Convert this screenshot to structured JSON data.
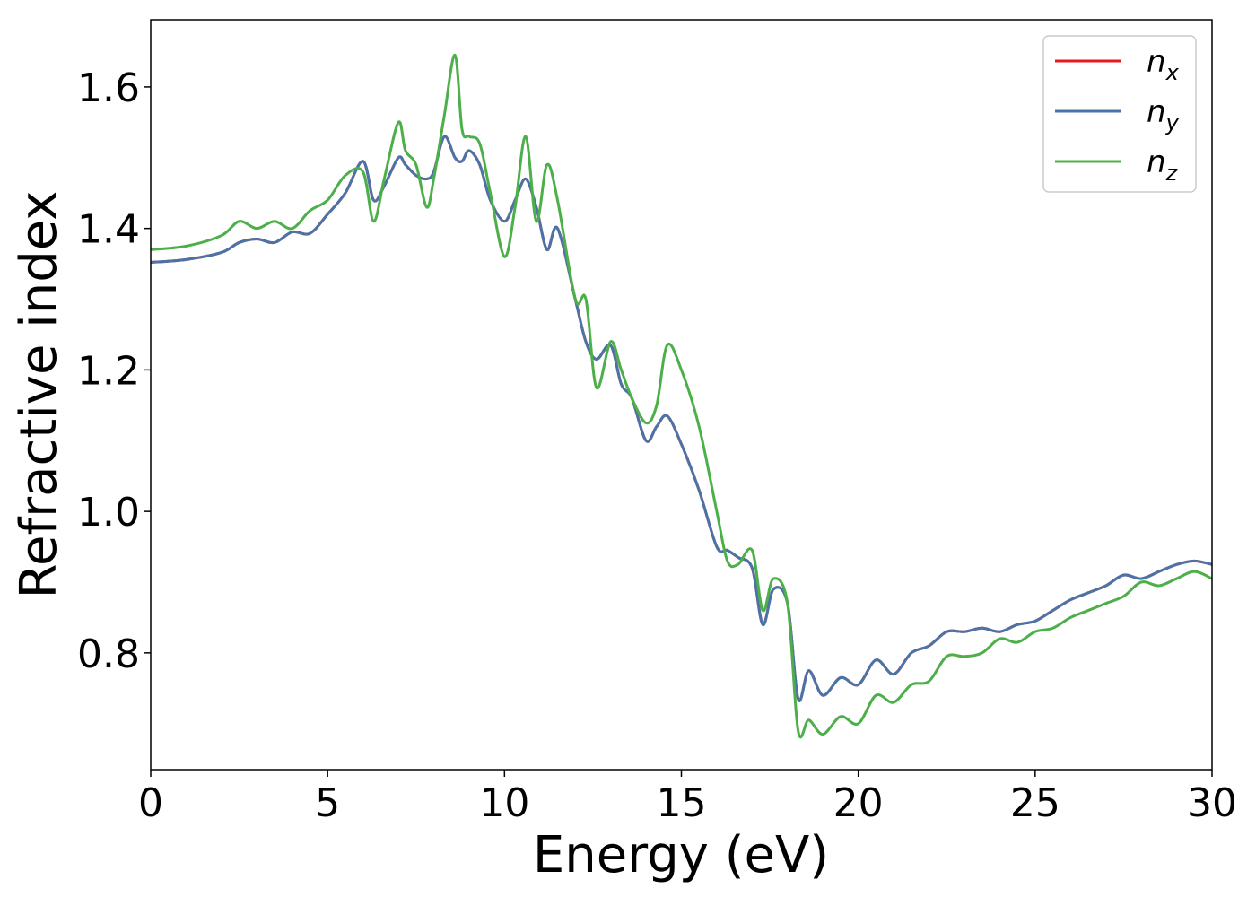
{
  "chart_data": {
    "type": "line",
    "title": "",
    "xlabel": "Energy (eV)",
    "ylabel": "Refractive index",
    "xlim": [
      0,
      30
    ],
    "ylim": [
      0.635,
      1.695
    ],
    "xticks": [
      0,
      5,
      10,
      15,
      20,
      25,
      30
    ],
    "xtick_labels": [
      "0",
      "5",
      "10",
      "15",
      "20",
      "25",
      "30"
    ],
    "yticks": [
      0.8,
      1.0,
      1.2,
      1.4,
      1.6
    ],
    "ytick_labels": [
      "0.8",
      "1.0",
      "1.2",
      "1.4",
      "1.6"
    ],
    "grid": false,
    "legend_position": "top-right",
    "series": [
      {
        "name": "n_x",
        "label_base": "n",
        "label_sub": "x",
        "color": "#e41a1c",
        "x": [
          0,
          1,
          2,
          2.5,
          3,
          3.5,
          4,
          4.5,
          5,
          5.5,
          6,
          6.3,
          6.6,
          7,
          7.2,
          7.5,
          7.8,
          8,
          8.3,
          8.6,
          8.8,
          9,
          9.3,
          9.6,
          10,
          10.3,
          10.6,
          10.9,
          11.2,
          11.5,
          12,
          12.3,
          12.6,
          13,
          13.3,
          13.6,
          14,
          14.3,
          14.6,
          15,
          15.5,
          16,
          16.3,
          16.6,
          17,
          17.3,
          17.6,
          18,
          18.3,
          18.6,
          19,
          19.5,
          20,
          20.5,
          21,
          21.5,
          22,
          22.5,
          23,
          23.5,
          24,
          24.5,
          25,
          25.5,
          26,
          26.5,
          27,
          27.5,
          28,
          28.5,
          29,
          29.5,
          30
        ],
        "y": [
          1.352,
          1.356,
          1.366,
          1.38,
          1.385,
          1.38,
          1.395,
          1.393,
          1.42,
          1.45,
          1.495,
          1.44,
          1.46,
          1.5,
          1.49,
          1.475,
          1.47,
          1.48,
          1.53,
          1.5,
          1.495,
          1.51,
          1.49,
          1.44,
          1.41,
          1.44,
          1.47,
          1.43,
          1.37,
          1.4,
          1.3,
          1.24,
          1.215,
          1.235,
          1.18,
          1.16,
          1.1,
          1.12,
          1.135,
          1.095,
          1.03,
          0.95,
          0.945,
          0.935,
          0.92,
          0.84,
          0.89,
          0.87,
          0.735,
          0.775,
          0.74,
          0.765,
          0.755,
          0.79,
          0.77,
          0.8,
          0.81,
          0.83,
          0.83,
          0.835,
          0.83,
          0.84,
          0.845,
          0.86,
          0.875,
          0.885,
          0.895,
          0.91,
          0.905,
          0.915,
          0.925,
          0.93,
          0.925
        ]
      },
      {
        "name": "n_y",
        "label_base": "n",
        "label_sub": "y",
        "color": "#4a74a8",
        "x": [
          0,
          1,
          2,
          2.5,
          3,
          3.5,
          4,
          4.5,
          5,
          5.5,
          6,
          6.3,
          6.6,
          7,
          7.2,
          7.5,
          7.8,
          8,
          8.3,
          8.6,
          8.8,
          9,
          9.3,
          9.6,
          10,
          10.3,
          10.6,
          10.9,
          11.2,
          11.5,
          12,
          12.3,
          12.6,
          13,
          13.3,
          13.6,
          14,
          14.3,
          14.6,
          15,
          15.5,
          16,
          16.3,
          16.6,
          17,
          17.3,
          17.6,
          18,
          18.3,
          18.6,
          19,
          19.5,
          20,
          20.5,
          21,
          21.5,
          22,
          22.5,
          23,
          23.5,
          24,
          24.5,
          25,
          25.5,
          26,
          26.5,
          27,
          27.5,
          28,
          28.5,
          29,
          29.5,
          30
        ],
        "y": [
          1.352,
          1.356,
          1.366,
          1.38,
          1.385,
          1.38,
          1.395,
          1.393,
          1.42,
          1.45,
          1.495,
          1.44,
          1.46,
          1.5,
          1.49,
          1.475,
          1.47,
          1.48,
          1.53,
          1.5,
          1.495,
          1.51,
          1.49,
          1.44,
          1.41,
          1.44,
          1.47,
          1.43,
          1.37,
          1.4,
          1.3,
          1.24,
          1.215,
          1.235,
          1.18,
          1.16,
          1.1,
          1.12,
          1.135,
          1.095,
          1.03,
          0.95,
          0.945,
          0.935,
          0.92,
          0.84,
          0.89,
          0.87,
          0.735,
          0.775,
          0.74,
          0.765,
          0.755,
          0.79,
          0.77,
          0.8,
          0.81,
          0.83,
          0.83,
          0.835,
          0.83,
          0.84,
          0.845,
          0.86,
          0.875,
          0.885,
          0.895,
          0.91,
          0.905,
          0.915,
          0.925,
          0.93,
          0.925
        ]
      },
      {
        "name": "n_z",
        "label_base": "n",
        "label_sub": "z",
        "color": "#4daf4a",
        "x": [
          0,
          1,
          2,
          2.5,
          3,
          3.5,
          4,
          4.5,
          5,
          5.5,
          6,
          6.3,
          6.6,
          7,
          7.2,
          7.5,
          7.8,
          8,
          8.3,
          8.6,
          8.8,
          9,
          9.3,
          9.6,
          10,
          10.3,
          10.6,
          10.9,
          11.2,
          11.5,
          12,
          12.3,
          12.6,
          13,
          13.3,
          13.6,
          14,
          14.3,
          14.6,
          15,
          15.5,
          16,
          16.3,
          16.6,
          17,
          17.3,
          17.6,
          18,
          18.3,
          18.6,
          19,
          19.5,
          20,
          20.5,
          21,
          21.5,
          22,
          22.5,
          23,
          23.5,
          24,
          24.5,
          25,
          25.5,
          26,
          26.5,
          27,
          27.5,
          28,
          28.5,
          29,
          29.5,
          30
        ],
        "y": [
          1.37,
          1.375,
          1.39,
          1.41,
          1.4,
          1.41,
          1.4,
          1.425,
          1.44,
          1.475,
          1.48,
          1.41,
          1.47,
          1.55,
          1.51,
          1.49,
          1.43,
          1.47,
          1.56,
          1.645,
          1.54,
          1.53,
          1.52,
          1.45,
          1.36,
          1.43,
          1.53,
          1.41,
          1.49,
          1.44,
          1.3,
          1.3,
          1.175,
          1.24,
          1.2,
          1.16,
          1.125,
          1.15,
          1.235,
          1.2,
          1.12,
          1.0,
          0.93,
          0.925,
          0.945,
          0.86,
          0.905,
          0.87,
          0.69,
          0.705,
          0.685,
          0.71,
          0.7,
          0.74,
          0.73,
          0.755,
          0.76,
          0.795,
          0.795,
          0.8,
          0.82,
          0.815,
          0.83,
          0.835,
          0.85,
          0.86,
          0.87,
          0.88,
          0.9,
          0.895,
          0.905,
          0.915,
          0.905
        ]
      }
    ]
  }
}
